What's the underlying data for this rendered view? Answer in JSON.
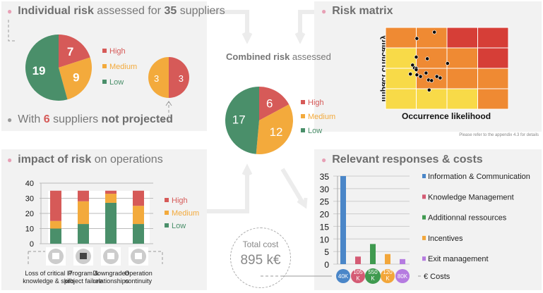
{
  "colors": {
    "high": "#d65a58",
    "medium": "#f3aa3c",
    "low": "#4a8f6a",
    "panel": "#f2f2f2"
  },
  "individual": {
    "title_bold": "Individual risk",
    "title_rest": "assessed for",
    "count": "35",
    "title_end": "suppliers",
    "pie": [
      {
        "label": "High",
        "value": 7
      },
      {
        "label": "Medium",
        "value": 9
      },
      {
        "label": "Low",
        "value": 19
      }
    ],
    "small_pie": [
      {
        "label": "High",
        "value": 3
      },
      {
        "label": "Medium",
        "value": 3
      }
    ],
    "footer_pre": "With",
    "footer_count": "6",
    "footer_mid": "suppliers",
    "footer_bold": "not projected"
  },
  "combined": {
    "title_bold": "Combined risk",
    "title_rest": "assessed",
    "pie": [
      {
        "label": "High",
        "value": 6
      },
      {
        "label": "Medium",
        "value": 12
      },
      {
        "label": "Low",
        "value": 17
      }
    ]
  },
  "matrix": {
    "title": "Risk matrix",
    "ylabel": "Impact criticality",
    "xlabel": "Occurrence likelihood",
    "note": "Please refer to the appendix 4.3 for details",
    "cells": [
      [
        "o",
        "o",
        "r",
        "r"
      ],
      [
        "y",
        "o",
        "o",
        "r"
      ],
      [
        "y",
        "o",
        "o",
        "o"
      ],
      [
        "y",
        "y",
        "y",
        "o"
      ]
    ],
    "cell_colors": {
      "y": "#f8da48",
      "o": "#ef8a33",
      "r": "#d63e37"
    },
    "points": [
      [
        1.59,
        3.77
      ],
      [
        1.02,
        3.46
      ],
      [
        1.0,
        2.55
      ],
      [
        1.36,
        2.47
      ],
      [
        2.02,
        2.24
      ],
      [
        0.88,
        2.16
      ],
      [
        0.94,
        2.02
      ],
      [
        1.0,
        2.0
      ],
      [
        1.0,
        1.93
      ],
      [
        0.81,
        1.72
      ],
      [
        1.02,
        1.68
      ],
      [
        1.14,
        1.6
      ],
      [
        1.32,
        1.77
      ],
      [
        1.67,
        1.6
      ],
      [
        1.78,
        1.53
      ],
      [
        1.4,
        1.43
      ],
      [
        1.5,
        1.4
      ],
      [
        1.42,
        0.94
      ]
    ]
  },
  "impact": {
    "title_bold": "impact of risk",
    "title_rest": "on operations",
    "chart_data": {
      "type": "bar",
      "stacked": true,
      "ylim": [
        0,
        40
      ],
      "yticks": [
        0,
        10,
        20,
        30,
        40
      ],
      "categories": [
        "Loss of critical IT knowledge & skills",
        "Program & project failure",
        "Downgraded relationships",
        "Operation continuity"
      ],
      "category_lines": [
        [
          "Loss of critical IT",
          "knowledge & skills"
        ],
        [
          "Program &",
          "project failure"
        ],
        [
          "Downgraded",
          "relationships"
        ],
        [
          "Operation",
          "continuity"
        ]
      ],
      "icons": [
        "head-gears-icon",
        "briefcase-icon",
        "handshake-icon",
        "document-icon"
      ],
      "series": [
        {
          "name": "Low",
          "values": [
            10,
            13,
            27,
            13
          ]
        },
        {
          "name": "Medium",
          "values": [
            5,
            15,
            6,
            12
          ]
        },
        {
          "name": "High",
          "values": [
            20,
            7,
            2,
            10
          ]
        }
      ],
      "legend": [
        "High",
        "Medium",
        "Low"
      ]
    }
  },
  "responses": {
    "title": "Relevant responses & costs",
    "chart_data": {
      "type": "bar",
      "ylim": [
        0,
        35
      ],
      "yticks": [
        0,
        5,
        10,
        15,
        20,
        25,
        30,
        35
      ],
      "categories": [
        "Information & Communication",
        "Knowledge Management",
        "Additionnal ressources",
        "Incentives",
        "Exit management"
      ],
      "values": [
        35,
        3,
        8,
        4,
        2
      ],
      "colors": [
        "#4a86c8",
        "#d45b74",
        "#3f9a4f",
        "#f2a63a",
        "#b57be0"
      ],
      "costs": [
        [
          "40K"
        ],
        [
          "105",
          "K"
        ],
        [
          "550",
          "K"
        ],
        [
          "120",
          "K"
        ],
        [
          "80K"
        ]
      ],
      "costs_label": "€ Costs"
    }
  },
  "total": {
    "label": "Total cost",
    "value": "895 k€"
  }
}
